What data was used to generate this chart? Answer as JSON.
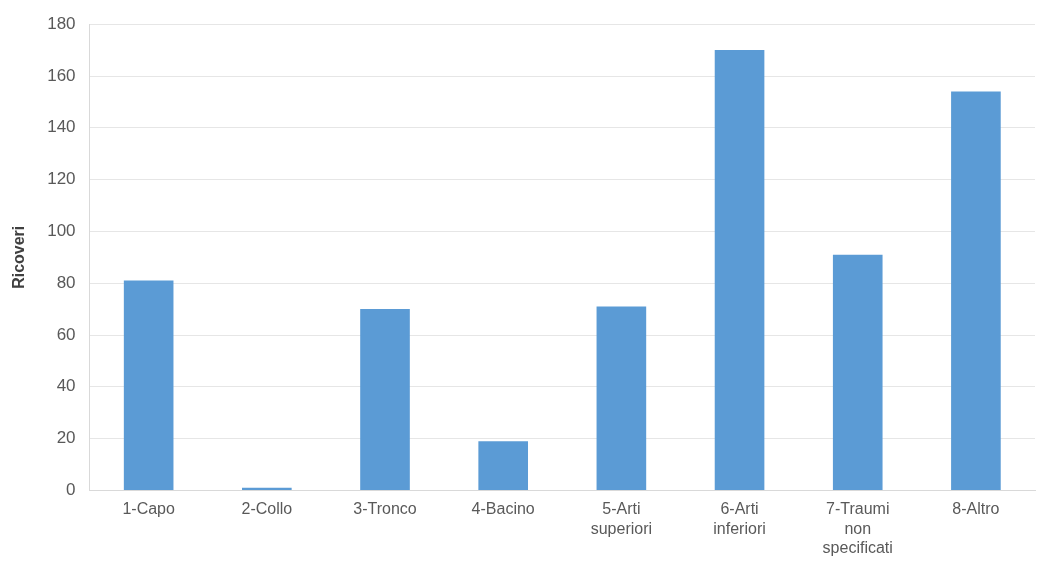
{
  "chart_data": {
    "type": "bar",
    "ylabel": "Ricoveri",
    "categories": [
      "1-Capo",
      "2-Collo",
      "3-Tronco",
      "4-Bacino",
      "5-Arti superiori",
      "6-Arti inferiori",
      "7-Traumi non specificati",
      "8-Altro"
    ],
    "values": [
      81,
      1,
      70,
      19,
      71,
      170,
      91,
      154
    ],
    "color": "#5b9bd5",
    "ylim": [
      0,
      180
    ],
    "yticks": [
      0,
      20,
      40,
      60,
      80,
      100,
      120,
      140,
      160,
      180
    ],
    "grid": "y",
    "legend": false
  }
}
